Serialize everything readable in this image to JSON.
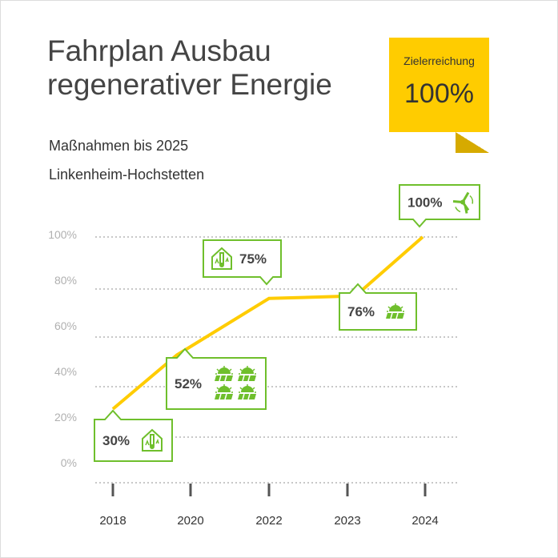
{
  "title_line1": "Fahrplan Ausbau",
  "title_line2": "regenerativer Energie",
  "subtitle1": "Maßnahmen bis 2025",
  "subtitle2": "Linkenheim-Hochstetten",
  "badge": {
    "label": "Zielerreichung",
    "value": "100%"
  },
  "colors": {
    "line": "#ffcc00",
    "callout": "#6fbf2c",
    "badge": "#ffcc00",
    "badge_fold": "#d6aa00"
  },
  "chart_data": {
    "type": "line",
    "categories": [
      "2018",
      "2020",
      "2022",
      "2023",
      "2024"
    ],
    "values": [
      30,
      52,
      75,
      76,
      100
    ],
    "yticks": [
      "0%",
      "20%",
      "40%",
      "60%",
      "80%",
      "100%"
    ],
    "ylim": [
      0,
      100
    ],
    "grid": true,
    "annotations": [
      {
        "label": "30%",
        "icons": [
          "house-thermometer"
        ]
      },
      {
        "label": "52%",
        "icons": [
          "solar-panel",
          "solar-panel",
          "solar-panel",
          "solar-panel"
        ]
      },
      {
        "label": "75%",
        "icons": [
          "house-thermometer"
        ]
      },
      {
        "label": "76%",
        "icons": [
          "solar-panel"
        ]
      },
      {
        "label": "100%",
        "icons": [
          "wind-turbine"
        ]
      }
    ]
  }
}
